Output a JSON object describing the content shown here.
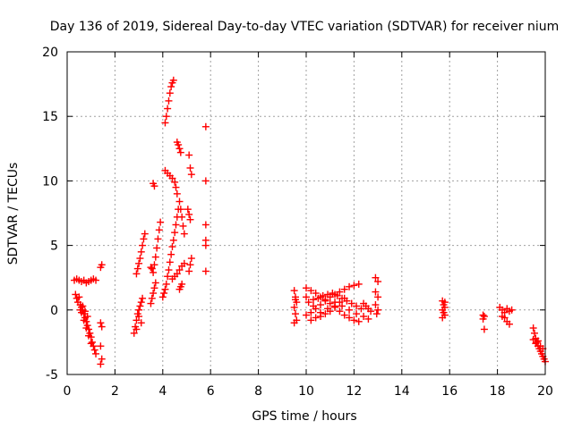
{
  "chart_data": {
    "type": "scatter",
    "title": "Day 136 of 2019, Sidereal Day-to-day VTEC variation (SDTVAR) for receiver nium",
    "xlabel": "GPS time / hours",
    "ylabel": "SDTVAR / TECUs",
    "xlim": [
      0,
      20
    ],
    "ylim": [
      -5,
      20
    ],
    "xticks": [
      "0",
      "2",
      "4",
      "6",
      "8",
      "10",
      "12",
      "14",
      "16",
      "18",
      "20"
    ],
    "yticks": [
      "-5",
      "0",
      "5",
      "10",
      "15",
      "20"
    ],
    "grid": true,
    "marker": "+",
    "colors": {
      "series": "#ff0000",
      "grid": "#a0a0a0",
      "axis": "#000000"
    },
    "series": [
      {
        "name": "SDTVAR",
        "points": [
          [
            0.3,
            2.3
          ],
          [
            0.4,
            2.4
          ],
          [
            0.5,
            2.3
          ],
          [
            0.6,
            2.2
          ],
          [
            0.7,
            2.3
          ],
          [
            0.8,
            2.1
          ],
          [
            0.9,
            2.2
          ],
          [
            1.0,
            2.3
          ],
          [
            1.1,
            2.4
          ],
          [
            1.2,
            2.3
          ],
          [
            0.35,
            1.2
          ],
          [
            0.4,
            0.9
          ],
          [
            0.45,
            0.6
          ],
          [
            0.5,
            1.0
          ],
          [
            0.55,
            0.4
          ],
          [
            0.6,
            0.2
          ],
          [
            0.65,
            0.0
          ],
          [
            0.7,
            -0.3
          ],
          [
            0.75,
            -0.6
          ],
          [
            0.8,
            -0.9
          ],
          [
            0.85,
            -1.2
          ],
          [
            0.9,
            -1.5
          ],
          [
            0.95,
            -1.8
          ],
          [
            1.0,
            -2.1
          ],
          [
            1.05,
            -2.5
          ],
          [
            1.1,
            -2.8
          ],
          [
            1.15,
            -3.1
          ],
          [
            1.2,
            -3.4
          ],
          [
            0.6,
            -0.2
          ],
          [
            0.7,
            -0.8
          ],
          [
            0.8,
            -1.4
          ],
          [
            0.9,
            -2.0
          ],
          [
            1.0,
            -2.6
          ],
          [
            0.55,
            0.0
          ],
          [
            0.65,
            0.3
          ],
          [
            0.75,
            -0.1
          ],
          [
            0.85,
            -0.5
          ],
          [
            1.4,
            3.3
          ],
          [
            1.45,
            3.5
          ],
          [
            1.4,
            -1.0
          ],
          [
            1.45,
            -1.3
          ],
          [
            1.4,
            -2.8
          ],
          [
            1.45,
            -3.8
          ],
          [
            1.4,
            -4.2
          ],
          [
            2.8,
            -1.8
          ],
          [
            2.85,
            -1.3
          ],
          [
            2.9,
            -0.8
          ],
          [
            2.95,
            -0.3
          ],
          [
            3.0,
            0.0
          ],
          [
            3.05,
            0.3
          ],
          [
            3.1,
            0.6
          ],
          [
            3.15,
            0.9
          ],
          [
            3.0,
            -0.5
          ],
          [
            3.1,
            -1.0
          ],
          [
            2.9,
            -1.5
          ],
          [
            2.9,
            2.8
          ],
          [
            2.95,
            3.2
          ],
          [
            3.0,
            3.6
          ],
          [
            3.05,
            4.0
          ],
          [
            3.1,
            4.5
          ],
          [
            3.15,
            5.0
          ],
          [
            3.2,
            5.5
          ],
          [
            3.25,
            5.9
          ],
          [
            3.5,
            3.3
          ],
          [
            3.55,
            3.2
          ],
          [
            3.5,
            0.5
          ],
          [
            3.55,
            0.9
          ],
          [
            3.6,
            1.3
          ],
          [
            3.65,
            1.7
          ],
          [
            3.7,
            2.1
          ],
          [
            3.6,
            2.9
          ],
          [
            3.65,
            3.5
          ],
          [
            3.7,
            4.1
          ],
          [
            3.75,
            4.8
          ],
          [
            3.8,
            5.5
          ],
          [
            3.85,
            6.2
          ],
          [
            3.9,
            6.8
          ],
          [
            3.6,
            9.8
          ],
          [
            3.65,
            9.6
          ],
          [
            4.0,
            1.0
          ],
          [
            4.05,
            1.3
          ],
          [
            4.1,
            1.6
          ],
          [
            4.15,
            2.0
          ],
          [
            4.2,
            2.6
          ],
          [
            4.25,
            3.1
          ],
          [
            4.3,
            3.7
          ],
          [
            4.35,
            4.3
          ],
          [
            4.4,
            4.9
          ],
          [
            4.45,
            5.4
          ],
          [
            4.5,
            6.0
          ],
          [
            4.55,
            6.6
          ],
          [
            4.6,
            7.2
          ],
          [
            4.65,
            7.8
          ],
          [
            4.1,
            14.5
          ],
          [
            4.15,
            15.0
          ],
          [
            4.2,
            15.6
          ],
          [
            4.25,
            16.2
          ],
          [
            4.3,
            16.8
          ],
          [
            4.35,
            17.3
          ],
          [
            4.4,
            17.6
          ],
          [
            4.45,
            17.8
          ],
          [
            4.1,
            10.8
          ],
          [
            4.2,
            10.6
          ],
          [
            4.3,
            10.4
          ],
          [
            4.4,
            10.2
          ],
          [
            4.5,
            9.9
          ],
          [
            4.55,
            9.5
          ],
          [
            4.6,
            9.0
          ],
          [
            4.7,
            8.4
          ],
          [
            4.75,
            7.8
          ],
          [
            4.8,
            7.2
          ],
          [
            4.85,
            6.5
          ],
          [
            4.9,
            5.9
          ],
          [
            4.4,
            2.4
          ],
          [
            4.5,
            2.6
          ],
          [
            4.6,
            2.8
          ],
          [
            4.7,
            3.1
          ],
          [
            4.8,
            3.4
          ],
          [
            4.9,
            3.6
          ],
          [
            4.6,
            13.0
          ],
          [
            4.65,
            12.8
          ],
          [
            4.7,
            12.5
          ],
          [
            4.75,
            12.2
          ],
          [
            4.7,
            1.6
          ],
          [
            4.75,
            1.8
          ],
          [
            4.8,
            2.0
          ],
          [
            5.1,
            12.0
          ],
          [
            5.15,
            11.0
          ],
          [
            5.2,
            10.5
          ],
          [
            5.05,
            7.8
          ],
          [
            5.1,
            7.4
          ],
          [
            5.15,
            7.0
          ],
          [
            5.1,
            3.0
          ],
          [
            5.15,
            3.5
          ],
          [
            5.2,
            4.0
          ],
          [
            5.8,
            14.2
          ],
          [
            5.8,
            10.0
          ],
          [
            5.8,
            6.6
          ],
          [
            5.8,
            5.4
          ],
          [
            5.8,
            5.0
          ],
          [
            5.8,
            3.0
          ],
          [
            9.5,
            1.5
          ],
          [
            9.55,
            1.0
          ],
          [
            9.6,
            0.6
          ],
          [
            9.5,
            0.2
          ],
          [
            9.55,
            -0.3
          ],
          [
            9.6,
            -0.8
          ],
          [
            9.5,
            -1.0
          ],
          [
            9.55,
            0.8
          ],
          [
            10.0,
            1.7
          ],
          [
            10.2,
            1.5
          ],
          [
            10.4,
            1.3
          ],
          [
            10.6,
            1.0
          ],
          [
            10.8,
            0.8
          ],
          [
            11.0,
            0.5
          ],
          [
            11.2,
            0.2
          ],
          [
            11.4,
            -0.1
          ],
          [
            11.6,
            -0.4
          ],
          [
            11.8,
            -0.6
          ],
          [
            12.0,
            -0.8
          ],
          [
            12.2,
            -0.9
          ],
          [
            10.0,
            -0.4
          ],
          [
            10.2,
            -0.2
          ],
          [
            10.4,
            0.1
          ],
          [
            10.6,
            0.4
          ],
          [
            10.8,
            0.7
          ],
          [
            11.0,
            1.0
          ],
          [
            11.2,
            1.2
          ],
          [
            11.4,
            1.4
          ],
          [
            11.6,
            1.6
          ],
          [
            11.8,
            1.8
          ],
          [
            12.0,
            1.9
          ],
          [
            12.2,
            2.0
          ],
          [
            10.1,
            0.6
          ],
          [
            10.3,
            0.8
          ],
          [
            10.5,
            0.9
          ],
          [
            10.7,
            1.1
          ],
          [
            10.9,
            1.2
          ],
          [
            11.1,
            1.3
          ],
          [
            11.3,
            1.1
          ],
          [
            11.5,
            0.9
          ],
          [
            11.7,
            0.7
          ],
          [
            11.9,
            0.5
          ],
          [
            12.1,
            0.3
          ],
          [
            12.3,
            0.1
          ],
          [
            10.2,
            -0.8
          ],
          [
            10.4,
            -0.6
          ],
          [
            10.6,
            -0.5
          ],
          [
            10.8,
            -0.3
          ],
          [
            11.0,
            -0.1
          ],
          [
            11.2,
            0.3
          ],
          [
            11.4,
            0.6
          ],
          [
            11.6,
            0.9
          ],
          [
            10.0,
            1.0
          ],
          [
            10.3,
            0.3
          ],
          [
            10.6,
            -0.2
          ],
          [
            10.9,
            0.1
          ],
          [
            11.2,
            0.6
          ],
          [
            11.5,
            0.3
          ],
          [
            11.8,
            0.0
          ],
          [
            12.1,
            -0.3
          ],
          [
            12.4,
            -0.5
          ],
          [
            12.6,
            -0.7
          ],
          [
            12.4,
            0.5
          ],
          [
            12.5,
            0.3
          ],
          [
            12.6,
            0.1
          ],
          [
            12.7,
            -0.1
          ],
          [
            12.9,
            2.5
          ],
          [
            13.0,
            2.2
          ],
          [
            12.9,
            1.4
          ],
          [
            13.0,
            1.0
          ],
          [
            12.9,
            0.4
          ],
          [
            13.0,
            0.0
          ],
          [
            12.95,
            -0.3
          ],
          [
            15.7,
            0.7
          ],
          [
            15.75,
            0.4
          ],
          [
            15.8,
            0.2
          ],
          [
            15.7,
            0.0
          ],
          [
            15.75,
            -0.2
          ],
          [
            15.8,
            -0.4
          ],
          [
            15.7,
            -0.6
          ],
          [
            15.8,
            0.6
          ],
          [
            17.4,
            -0.4
          ],
          [
            17.45,
            -0.5
          ],
          [
            17.4,
            -0.7
          ],
          [
            17.45,
            -1.5
          ],
          [
            18.1,
            0.2
          ],
          [
            18.2,
            0.0
          ],
          [
            18.3,
            -0.2
          ],
          [
            18.4,
            0.1
          ],
          [
            18.5,
            -0.1
          ],
          [
            18.6,
            0.0
          ],
          [
            18.3,
            -0.6
          ],
          [
            18.4,
            -0.9
          ],
          [
            18.5,
            -1.1
          ],
          [
            18.2,
            -0.5
          ],
          [
            19.5,
            -1.4
          ],
          [
            19.55,
            -1.8
          ],
          [
            19.6,
            -2.2
          ],
          [
            19.65,
            -2.5
          ],
          [
            19.7,
            -2.8
          ],
          [
            19.75,
            -3.0
          ],
          [
            19.8,
            -3.2
          ],
          [
            19.85,
            -3.4
          ],
          [
            19.9,
            -3.6
          ],
          [
            19.95,
            -3.8
          ],
          [
            20.0,
            -4.0
          ],
          [
            19.6,
            -2.6
          ],
          [
            19.7,
            -2.4
          ],
          [
            19.8,
            -2.8
          ],
          [
            19.9,
            -3.0
          ],
          [
            19.5,
            -2.3
          ]
        ]
      }
    ]
  }
}
